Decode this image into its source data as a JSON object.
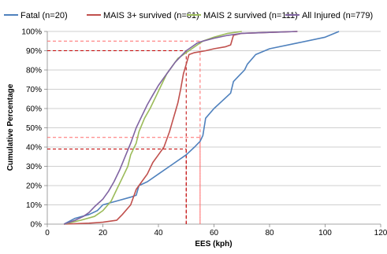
{
  "chart_data": {
    "type": "line",
    "xlabel": "EES (kph)",
    "ylabel": "Cumulative Percentage",
    "xlim": [
      0,
      120
    ],
    "ylim": [
      0,
      100
    ],
    "x_ticks": [
      "0",
      "20",
      "40",
      "60",
      "80",
      "100",
      "120"
    ],
    "y_ticks": [
      "0%",
      "10%",
      "20%",
      "30%",
      "40%",
      "50%",
      "60%",
      "70%",
      "80%",
      "90%",
      "100%"
    ],
    "grid": "horizontal",
    "legend_position": "top",
    "series": [
      {
        "name": "Fatal (n=20)",
        "color": "#4f81bd",
        "points": [
          [
            6,
            0
          ],
          [
            10,
            3
          ],
          [
            15,
            5
          ],
          [
            18,
            7
          ],
          [
            20,
            10
          ],
          [
            25,
            12
          ],
          [
            30,
            14
          ],
          [
            32,
            15
          ],
          [
            33,
            20
          ],
          [
            36,
            22
          ],
          [
            40,
            26
          ],
          [
            45,
            31
          ],
          [
            50,
            36
          ],
          [
            53,
            40
          ],
          [
            55,
            43
          ],
          [
            56,
            46
          ],
          [
            57,
            55
          ],
          [
            60,
            60
          ],
          [
            63,
            64
          ],
          [
            66,
            68
          ],
          [
            67,
            74
          ],
          [
            69,
            77
          ],
          [
            71,
            80
          ],
          [
            72,
            83
          ],
          [
            75,
            88
          ],
          [
            80,
            91
          ],
          [
            90,
            94
          ],
          [
            100,
            97
          ],
          [
            105,
            100
          ]
        ]
      },
      {
        "name": "MAIS 3+ survived (n=61)",
        "color": "#c0504d",
        "points": [
          [
            6,
            0
          ],
          [
            15,
            0.5
          ],
          [
            20,
            1
          ],
          [
            25,
            2
          ],
          [
            27,
            5
          ],
          [
            30,
            10
          ],
          [
            32,
            18
          ],
          [
            34,
            22
          ],
          [
            36,
            26
          ],
          [
            38,
            32
          ],
          [
            40,
            36
          ],
          [
            42,
            40
          ],
          [
            44,
            48
          ],
          [
            45,
            53
          ],
          [
            46,
            58
          ],
          [
            47,
            63
          ],
          [
            48,
            70
          ],
          [
            49,
            78
          ],
          [
            50,
            83
          ],
          [
            51,
            88
          ],
          [
            53,
            89
          ],
          [
            57,
            90
          ],
          [
            60,
            91
          ],
          [
            64,
            92
          ],
          [
            66,
            93
          ],
          [
            67,
            98
          ],
          [
            70,
            99
          ],
          [
            80,
            99.5
          ],
          [
            90,
            100
          ]
        ]
      },
      {
        "name": "MAIS 2 survived (n=111)",
        "color": "#9bbb59",
        "points": [
          [
            6,
            0
          ],
          [
            12,
            2
          ],
          [
            17,
            4
          ],
          [
            20,
            7
          ],
          [
            23,
            12
          ],
          [
            25,
            18
          ],
          [
            27,
            24
          ],
          [
            29,
            30
          ],
          [
            30,
            36
          ],
          [
            32,
            42
          ],
          [
            33,
            48
          ],
          [
            35,
            55
          ],
          [
            37,
            60
          ],
          [
            39,
            66
          ],
          [
            41,
            72
          ],
          [
            43,
            78
          ],
          [
            45,
            82
          ],
          [
            47,
            86
          ],
          [
            50,
            89
          ],
          [
            52,
            91
          ],
          [
            54,
            93
          ],
          [
            56,
            95
          ],
          [
            60,
            97
          ],
          [
            65,
            99
          ],
          [
            70,
            100
          ]
        ]
      },
      {
        "name": "All Injured (n=779)",
        "color": "#8064a2",
        "points": [
          [
            6,
            0
          ],
          [
            10,
            2
          ],
          [
            13,
            4
          ],
          [
            15,
            6
          ],
          [
            17,
            9
          ],
          [
            20,
            13
          ],
          [
            22,
            17
          ],
          [
            24,
            22
          ],
          [
            26,
            28
          ],
          [
            28,
            35
          ],
          [
            30,
            42
          ],
          [
            32,
            50
          ],
          [
            34,
            56
          ],
          [
            36,
            62
          ],
          [
            38,
            67
          ],
          [
            40,
            72
          ],
          [
            42,
            76
          ],
          [
            44,
            80
          ],
          [
            46,
            84
          ],
          [
            48,
            87
          ],
          [
            50,
            90
          ],
          [
            52,
            92
          ],
          [
            54,
            94
          ],
          [
            56,
            95
          ],
          [
            60,
            96.5
          ],
          [
            65,
            98
          ],
          [
            70,
            99
          ],
          [
            80,
            99.5
          ],
          [
            90,
            100
          ]
        ]
      }
    ],
    "reference_lines": [
      {
        "y": 95,
        "x": 55,
        "color": "#ff6a6a"
      },
      {
        "y": 90,
        "x": 50,
        "color": "#c00000"
      },
      {
        "y": 45,
        "x": 55,
        "color": "#ff6a6a"
      },
      {
        "y": 39,
        "x": 50,
        "color": "#c00000"
      }
    ]
  }
}
